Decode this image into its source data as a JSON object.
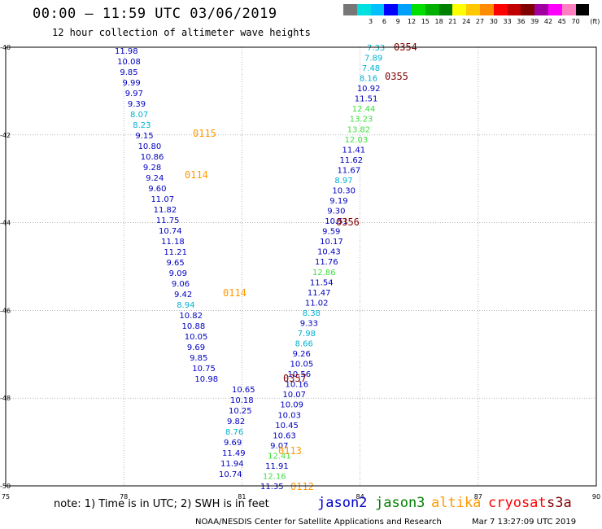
{
  "header": {
    "title": "00:00 — 11:59 UTC 03/06/2019",
    "subtitle": "12 hour collection of altimeter wave heights"
  },
  "colorbar": {
    "unit": "(ft)",
    "bins": [
      {
        "label": "",
        "color": "#777777"
      },
      {
        "label": "3",
        "color": "#00e0e0"
      },
      {
        "label": "6",
        "color": "#00c0ff"
      },
      {
        "label": "9",
        "color": "#0000ff"
      },
      {
        "label": "12",
        "color": "#00a0ff"
      },
      {
        "label": "15",
        "color": "#00e000"
      },
      {
        "label": "18",
        "color": "#00b000"
      },
      {
        "label": "21",
        "color": "#008000"
      },
      {
        "label": "24",
        "color": "#ffff00"
      },
      {
        "label": "27",
        "color": "#ffc800"
      },
      {
        "label": "30",
        "color": "#ff8c00"
      },
      {
        "label": "33",
        "color": "#ff0000"
      },
      {
        "label": "36",
        "color": "#c00000"
      },
      {
        "label": "39",
        "color": "#800000"
      },
      {
        "label": "42",
        "color": "#a000a0"
      },
      {
        "label": "45",
        "color": "#ff00ff"
      },
      {
        "label": "70",
        "color": "#ff80c0"
      },
      {
        "label": "",
        "color": "#000000"
      }
    ]
  },
  "axes": {
    "lon_ticks": [
      "75",
      "78",
      "81",
      "84",
      "87",
      "90"
    ],
    "lat_ticks": [
      "-40",
      "-42",
      "-44",
      "-46",
      "-48",
      "-50"
    ]
  },
  "colors": {
    "dark_blue": "#0000c0",
    "light_cyan": "#00b0d0",
    "light_green": "#40e040",
    "time_dark_red": "#800000",
    "time_orange": "#ff9900"
  },
  "chart_data": {
    "type": "scatter",
    "title": "12 hour collection of altimeter wave heights",
    "xlim": [
      75,
      90
    ],
    "ylim": [
      -50,
      -40
    ],
    "unit": "ft",
    "track_west": [
      {
        "v": "11.98",
        "c": "dark_blue"
      },
      {
        "v": "10.08",
        "c": "dark_blue"
      },
      {
        "v": "9.85",
        "c": "dark_blue"
      },
      {
        "v": "9.99",
        "c": "dark_blue"
      },
      {
        "v": "9.97",
        "c": "dark_blue"
      },
      {
        "v": "9.39",
        "c": "dark_blue"
      },
      {
        "v": "8.07",
        "c": "light_cyan"
      },
      {
        "v": "8.23",
        "c": "light_cyan"
      },
      {
        "v": "9.15",
        "c": "dark_blue"
      },
      {
        "v": "10.80",
        "c": "dark_blue"
      },
      {
        "v": "10.86",
        "c": "dark_blue"
      },
      {
        "v": "9.28",
        "c": "dark_blue"
      },
      {
        "v": "9.24",
        "c": "dark_blue"
      },
      {
        "v": "9.60",
        "c": "dark_blue"
      },
      {
        "v": "11.07",
        "c": "dark_blue"
      },
      {
        "v": "11.82",
        "c": "dark_blue"
      },
      {
        "v": "11.75",
        "c": "dark_blue"
      },
      {
        "v": "10.74",
        "c": "dark_blue"
      },
      {
        "v": "11.18",
        "c": "dark_blue"
      },
      {
        "v": "11.21",
        "c": "dark_blue"
      },
      {
        "v": "9.65",
        "c": "dark_blue"
      },
      {
        "v": "9.09",
        "c": "dark_blue"
      },
      {
        "v": "9.06",
        "c": "dark_blue"
      },
      {
        "v": "9.42",
        "c": "dark_blue"
      },
      {
        "v": "8.94",
        "c": "light_cyan"
      },
      {
        "v": "10.82",
        "c": "dark_blue"
      },
      {
        "v": "10.88",
        "c": "dark_blue"
      },
      {
        "v": "10.05",
        "c": "dark_blue"
      },
      {
        "v": "9.69",
        "c": "dark_blue"
      },
      {
        "v": "9.85",
        "c": "dark_blue"
      },
      {
        "v": "10.75",
        "c": "dark_blue"
      },
      {
        "v": "10.98",
        "c": "dark_blue"
      },
      {
        "v": "10.65",
        "c": "dark_blue"
      },
      {
        "v": "10.18",
        "c": "dark_blue"
      },
      {
        "v": "10.25",
        "c": "dark_blue"
      },
      {
        "v": "9.82",
        "c": "dark_blue"
      },
      {
        "v": "8.76",
        "c": "light_cyan"
      },
      {
        "v": "9.69",
        "c": "dark_blue"
      },
      {
        "v": "11.49",
        "c": "dark_blue"
      },
      {
        "v": "11.94",
        "c": "dark_blue"
      },
      {
        "v": "10.74",
        "c": "dark_blue"
      }
    ],
    "track_east": [
      {
        "v": "7.33",
        "c": "light_cyan"
      },
      {
        "v": "7.89",
        "c": "light_cyan"
      },
      {
        "v": "7.48",
        "c": "light_cyan"
      },
      {
        "v": "8.16",
        "c": "light_cyan"
      },
      {
        "v": "10.92",
        "c": "dark_blue"
      },
      {
        "v": "11.51",
        "c": "dark_blue"
      },
      {
        "v": "12.44",
        "c": "light_green"
      },
      {
        "v": "13.23",
        "c": "light_green"
      },
      {
        "v": "13.82",
        "c": "light_green"
      },
      {
        "v": "12.03",
        "c": "light_green"
      },
      {
        "v": "11.41",
        "c": "dark_blue"
      },
      {
        "v": "11.62",
        "c": "dark_blue"
      },
      {
        "v": "11.67",
        "c": "dark_blue"
      },
      {
        "v": "8.97",
        "c": "light_cyan"
      },
      {
        "v": "10.30",
        "c": "dark_blue"
      },
      {
        "v": "9.19",
        "c": "dark_blue"
      },
      {
        "v": "9.30",
        "c": "dark_blue"
      },
      {
        "v": "10.51",
        "c": "dark_blue"
      },
      {
        "v": "9.59",
        "c": "dark_blue"
      },
      {
        "v": "10.17",
        "c": "dark_blue"
      },
      {
        "v": "10.43",
        "c": "dark_blue"
      },
      {
        "v": "11.76",
        "c": "dark_blue"
      },
      {
        "v": "12.86",
        "c": "light_green"
      },
      {
        "v": "11.54",
        "c": "dark_blue"
      },
      {
        "v": "11.47",
        "c": "dark_blue"
      },
      {
        "v": "11.02",
        "c": "dark_blue"
      },
      {
        "v": "8.38",
        "c": "light_cyan"
      },
      {
        "v": "9.33",
        "c": "dark_blue"
      },
      {
        "v": "7.98",
        "c": "light_cyan"
      },
      {
        "v": "8.66",
        "c": "light_cyan"
      },
      {
        "v": "9.26",
        "c": "dark_blue"
      },
      {
        "v": "10.05",
        "c": "dark_blue"
      },
      {
        "v": "10.56",
        "c": "dark_blue"
      },
      {
        "v": "10.16",
        "c": "dark_blue"
      },
      {
        "v": "10.07",
        "c": "dark_blue"
      },
      {
        "v": "10.09",
        "c": "dark_blue"
      },
      {
        "v": "10.03",
        "c": "dark_blue"
      },
      {
        "v": "10.45",
        "c": "dark_blue"
      },
      {
        "v": "10.63",
        "c": "dark_blue"
      },
      {
        "v": "9.07",
        "c": "dark_blue"
      },
      {
        "v": "12.41",
        "c": "light_green"
      },
      {
        "v": "11.91",
        "c": "dark_blue"
      },
      {
        "v": "12.16",
        "c": "light_green"
      },
      {
        "v": "11.35",
        "c": "dark_blue"
      }
    ],
    "time_labels": [
      {
        "t": "0354",
        "c": "time_dark_red"
      },
      {
        "t": "0355",
        "c": "time_dark_red"
      },
      {
        "t": "0115",
        "c": "time_orange"
      },
      {
        "t": "0114",
        "c": "time_orange"
      },
      {
        "t": "0356",
        "c": "time_dark_red"
      },
      {
        "t": "0114",
        "c": "time_orange"
      },
      {
        "t": "0357",
        "c": "time_dark_red"
      },
      {
        "t": "0113",
        "c": "time_orange"
      },
      {
        "t": "0112",
        "c": "time_orange"
      }
    ]
  },
  "footer": {
    "note": "note: 1) Time is in UTC; 2) SWH is in feet",
    "legend": [
      {
        "label": "jason2",
        "color": "#0000d0"
      },
      {
        "label": "jason3",
        "color": "#008000"
      },
      {
        "label": "altika",
        "color": "#ff9900"
      },
      {
        "label": "cryosat",
        "color": "#ff0000"
      },
      {
        "label": "s3a",
        "color": "#800000"
      }
    ],
    "credit": "NOAA/NESDIS Center for Satellite Applications and Research",
    "timestamp": "Mar  7 13:27:09 UTC 2019"
  }
}
